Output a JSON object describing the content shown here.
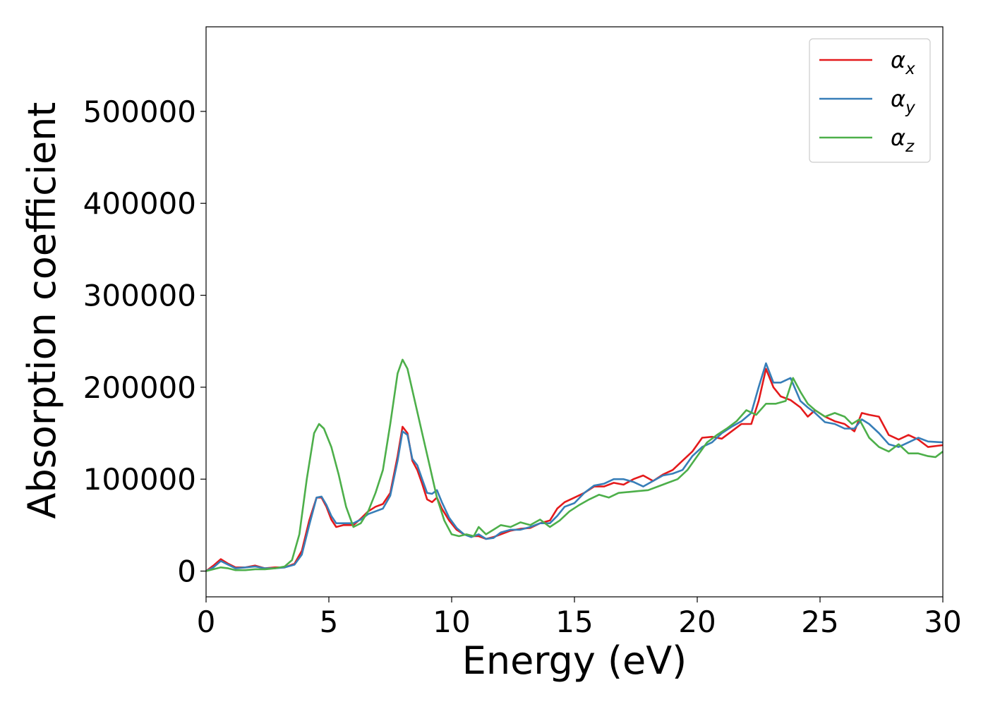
{
  "chart_data": {
    "type": "line",
    "title": "",
    "xlabel": "Energy (eV)",
    "ylabel": "Absorption coefficient",
    "xlim": [
      0,
      30
    ],
    "ylim": [
      -28000,
      592000
    ],
    "xticks": [
      "0",
      "5",
      "10",
      "15",
      "20",
      "25",
      "30"
    ],
    "yticks": [
      "0",
      "100000",
      "200000",
      "300000",
      "400000",
      "500000"
    ],
    "grid": false,
    "legend_position": "top-right",
    "series": [
      {
        "name": "αx",
        "color": "#e41a1c",
        "points": [
          [
            0,
            0
          ],
          [
            0.3,
            6000
          ],
          [
            0.6,
            13000
          ],
          [
            0.9,
            8000
          ],
          [
            1.2,
            4000
          ],
          [
            1.6,
            4000
          ],
          [
            2.0,
            6000
          ],
          [
            2.4,
            3000
          ],
          [
            2.8,
            4000
          ],
          [
            3.2,
            4000
          ],
          [
            3.6,
            8000
          ],
          [
            3.9,
            22000
          ],
          [
            4.2,
            55000
          ],
          [
            4.5,
            80000
          ],
          [
            4.7,
            80000
          ],
          [
            4.9,
            70000
          ],
          [
            5.1,
            56000
          ],
          [
            5.3,
            48000
          ],
          [
            5.6,
            50000
          ],
          [
            6.0,
            50000
          ],
          [
            6.3,
            57000
          ],
          [
            6.6,
            65000
          ],
          [
            6.9,
            70000
          ],
          [
            7.2,
            73000
          ],
          [
            7.5,
            85000
          ],
          [
            7.8,
            125000
          ],
          [
            8.0,
            157000
          ],
          [
            8.2,
            150000
          ],
          [
            8.4,
            120000
          ],
          [
            8.6,
            110000
          ],
          [
            8.8,
            95000
          ],
          [
            9.0,
            78000
          ],
          [
            9.2,
            75000
          ],
          [
            9.4,
            80000
          ],
          [
            9.6,
            68000
          ],
          [
            9.9,
            55000
          ],
          [
            10.2,
            45000
          ],
          [
            10.5,
            40000
          ],
          [
            10.8,
            38000
          ],
          [
            11.1,
            38000
          ],
          [
            11.4,
            35000
          ],
          [
            11.7,
            37000
          ],
          [
            12.0,
            40000
          ],
          [
            12.4,
            44000
          ],
          [
            12.8,
            46000
          ],
          [
            13.2,
            47000
          ],
          [
            13.6,
            52000
          ],
          [
            14.0,
            55000
          ],
          [
            14.3,
            68000
          ],
          [
            14.6,
            75000
          ],
          [
            15.0,
            80000
          ],
          [
            15.4,
            85000
          ],
          [
            15.8,
            92000
          ],
          [
            16.2,
            92000
          ],
          [
            16.6,
            96000
          ],
          [
            17.0,
            94000
          ],
          [
            17.4,
            100000
          ],
          [
            17.8,
            104000
          ],
          [
            18.2,
            98000
          ],
          [
            18.6,
            105000
          ],
          [
            19.0,
            110000
          ],
          [
            19.4,
            120000
          ],
          [
            19.8,
            130000
          ],
          [
            20.2,
            145000
          ],
          [
            20.6,
            146000
          ],
          [
            21.0,
            144000
          ],
          [
            21.4,
            152000
          ],
          [
            21.8,
            160000
          ],
          [
            22.2,
            160000
          ],
          [
            22.5,
            185000
          ],
          [
            22.8,
            220000
          ],
          [
            23.1,
            200000
          ],
          [
            23.4,
            190000
          ],
          [
            23.8,
            186000
          ],
          [
            24.2,
            178000
          ],
          [
            24.5,
            168000
          ],
          [
            24.8,
            175000
          ],
          [
            25.2,
            168000
          ],
          [
            25.6,
            163000
          ],
          [
            26.0,
            160000
          ],
          [
            26.4,
            152000
          ],
          [
            26.7,
            172000
          ],
          [
            27.0,
            170000
          ],
          [
            27.4,
            168000
          ],
          [
            27.8,
            148000
          ],
          [
            28.2,
            143000
          ],
          [
            28.6,
            148000
          ],
          [
            29.0,
            143000
          ],
          [
            29.4,
            135000
          ],
          [
            30.0,
            137000
          ]
        ]
      },
      {
        "name": "αy",
        "color": "#377eb8",
        "points": [
          [
            0,
            0
          ],
          [
            0.3,
            4000
          ],
          [
            0.6,
            11000
          ],
          [
            0.9,
            7000
          ],
          [
            1.2,
            3000
          ],
          [
            1.6,
            4000
          ],
          [
            2.0,
            5000
          ],
          [
            2.4,
            3000
          ],
          [
            2.8,
            3000
          ],
          [
            3.2,
            4000
          ],
          [
            3.6,
            7000
          ],
          [
            3.9,
            18000
          ],
          [
            4.2,
            50000
          ],
          [
            4.5,
            80000
          ],
          [
            4.7,
            81000
          ],
          [
            4.9,
            72000
          ],
          [
            5.1,
            60000
          ],
          [
            5.3,
            52000
          ],
          [
            5.6,
            52000
          ],
          [
            6.0,
            52000
          ],
          [
            6.3,
            56000
          ],
          [
            6.6,
            62000
          ],
          [
            6.9,
            65000
          ],
          [
            7.2,
            68000
          ],
          [
            7.5,
            82000
          ],
          [
            7.8,
            120000
          ],
          [
            8.0,
            152000
          ],
          [
            8.2,
            148000
          ],
          [
            8.4,
            122000
          ],
          [
            8.6,
            115000
          ],
          [
            8.8,
            100000
          ],
          [
            9.0,
            85000
          ],
          [
            9.2,
            84000
          ],
          [
            9.4,
            88000
          ],
          [
            9.6,
            75000
          ],
          [
            9.9,
            58000
          ],
          [
            10.2,
            47000
          ],
          [
            10.5,
            40000
          ],
          [
            10.8,
            37000
          ],
          [
            11.1,
            40000
          ],
          [
            11.4,
            35000
          ],
          [
            11.7,
            36000
          ],
          [
            12.0,
            42000
          ],
          [
            12.4,
            45000
          ],
          [
            12.8,
            45000
          ],
          [
            13.2,
            48000
          ],
          [
            13.6,
            52000
          ],
          [
            14.0,
            52000
          ],
          [
            14.3,
            60000
          ],
          [
            14.6,
            70000
          ],
          [
            15.0,
            74000
          ],
          [
            15.4,
            85000
          ],
          [
            15.8,
            93000
          ],
          [
            16.2,
            95000
          ],
          [
            16.6,
            100000
          ],
          [
            17.0,
            100000
          ],
          [
            17.4,
            97000
          ],
          [
            17.8,
            92000
          ],
          [
            18.2,
            98000
          ],
          [
            18.6,
            104000
          ],
          [
            19.0,
            106000
          ],
          [
            19.4,
            110000
          ],
          [
            19.8,
            125000
          ],
          [
            20.2,
            135000
          ],
          [
            20.6,
            140000
          ],
          [
            21.0,
            150000
          ],
          [
            21.4,
            157000
          ],
          [
            21.8,
            163000
          ],
          [
            22.2,
            172000
          ],
          [
            22.5,
            200000
          ],
          [
            22.8,
            226000
          ],
          [
            23.1,
            205000
          ],
          [
            23.4,
            205000
          ],
          [
            23.8,
            210000
          ],
          [
            24.2,
            185000
          ],
          [
            24.5,
            178000
          ],
          [
            24.8,
            172000
          ],
          [
            25.2,
            162000
          ],
          [
            25.6,
            160000
          ],
          [
            26.0,
            155000
          ],
          [
            26.4,
            155000
          ],
          [
            26.7,
            165000
          ],
          [
            27.0,
            160000
          ],
          [
            27.4,
            150000
          ],
          [
            27.8,
            138000
          ],
          [
            28.2,
            135000
          ],
          [
            28.6,
            140000
          ],
          [
            29.0,
            145000
          ],
          [
            29.4,
            141000
          ],
          [
            30.0,
            140000
          ]
        ]
      },
      {
        "name": "αz",
        "color": "#4daf4a",
        "points": [
          [
            0,
            0
          ],
          [
            0.3,
            2000
          ],
          [
            0.6,
            4000
          ],
          [
            0.9,
            3000
          ],
          [
            1.2,
            1000
          ],
          [
            1.6,
            1000
          ],
          [
            2.0,
            2000
          ],
          [
            2.4,
            2000
          ],
          [
            2.8,
            3000
          ],
          [
            3.2,
            5000
          ],
          [
            3.5,
            12000
          ],
          [
            3.8,
            40000
          ],
          [
            4.1,
            100000
          ],
          [
            4.4,
            150000
          ],
          [
            4.6,
            160000
          ],
          [
            4.8,
            155000
          ],
          [
            5.1,
            135000
          ],
          [
            5.4,
            105000
          ],
          [
            5.7,
            70000
          ],
          [
            6.0,
            48000
          ],
          [
            6.3,
            52000
          ],
          [
            6.6,
            65000
          ],
          [
            6.9,
            85000
          ],
          [
            7.2,
            110000
          ],
          [
            7.5,
            160000
          ],
          [
            7.8,
            215000
          ],
          [
            8.0,
            230000
          ],
          [
            8.2,
            220000
          ],
          [
            8.5,
            185000
          ],
          [
            8.8,
            150000
          ],
          [
            9.1,
            115000
          ],
          [
            9.4,
            80000
          ],
          [
            9.7,
            55000
          ],
          [
            10.0,
            40000
          ],
          [
            10.3,
            38000
          ],
          [
            10.6,
            40000
          ],
          [
            10.9,
            38000
          ],
          [
            11.1,
            48000
          ],
          [
            11.4,
            40000
          ],
          [
            11.7,
            45000
          ],
          [
            12.0,
            50000
          ],
          [
            12.4,
            48000
          ],
          [
            12.8,
            53000
          ],
          [
            13.2,
            50000
          ],
          [
            13.6,
            56000
          ],
          [
            14.0,
            48000
          ],
          [
            14.4,
            55000
          ],
          [
            14.8,
            65000
          ],
          [
            15.2,
            72000
          ],
          [
            15.6,
            78000
          ],
          [
            16.0,
            83000
          ],
          [
            16.4,
            80000
          ],
          [
            16.8,
            85000
          ],
          [
            17.2,
            86000
          ],
          [
            17.6,
            87000
          ],
          [
            18.0,
            88000
          ],
          [
            18.4,
            92000
          ],
          [
            18.8,
            96000
          ],
          [
            19.2,
            100000
          ],
          [
            19.6,
            110000
          ],
          [
            20.0,
            125000
          ],
          [
            20.4,
            140000
          ],
          [
            20.8,
            148000
          ],
          [
            21.2,
            155000
          ],
          [
            21.6,
            163000
          ],
          [
            22.0,
            175000
          ],
          [
            22.4,
            170000
          ],
          [
            22.8,
            182000
          ],
          [
            23.2,
            182000
          ],
          [
            23.6,
            185000
          ],
          [
            23.9,
            210000
          ],
          [
            24.2,
            195000
          ],
          [
            24.5,
            182000
          ],
          [
            24.8,
            175000
          ],
          [
            25.2,
            168000
          ],
          [
            25.6,
            172000
          ],
          [
            26.0,
            168000
          ],
          [
            26.3,
            160000
          ],
          [
            26.6,
            165000
          ],
          [
            27.0,
            145000
          ],
          [
            27.4,
            135000
          ],
          [
            27.8,
            130000
          ],
          [
            28.2,
            138000
          ],
          [
            28.6,
            128000
          ],
          [
            29.0,
            128000
          ],
          [
            29.4,
            125000
          ],
          [
            29.7,
            124000
          ],
          [
            30.0,
            130000
          ]
        ]
      }
    ]
  },
  "legend": {
    "entries": [
      {
        "base": "α",
        "sub": "x",
        "color": "#e41a1c"
      },
      {
        "base": "α",
        "sub": "y",
        "color": "#377eb8"
      },
      {
        "base": "α",
        "sub": "z",
        "color": "#4daf4a"
      }
    ]
  }
}
